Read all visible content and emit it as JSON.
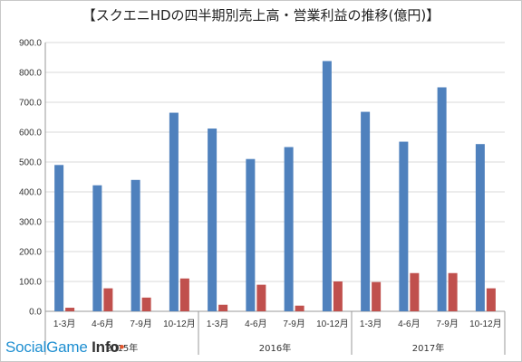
{
  "chart_data": {
    "type": "bar",
    "title": "【スクエニHDの四半期別売上高・営業利益の推移(億円)】",
    "categories": [
      "1-3月",
      "4-6月",
      "7-9月",
      "10-12月",
      "1-3月",
      "4-6月",
      "7-9月",
      "10-12月",
      "1-3月",
      "4-6月",
      "7-9月",
      "10-12月"
    ],
    "groups": [
      {
        "label": "2015年",
        "start": 0,
        "end": 3
      },
      {
        "label": "2016年",
        "start": 4,
        "end": 7
      },
      {
        "label": "2017年",
        "start": 8,
        "end": 11
      }
    ],
    "series": [
      {
        "color": "#4f81bd",
        "values": [
          490,
          422,
          440,
          665,
          612,
          510,
          550,
          838,
          668,
          568,
          750,
          560
        ]
      },
      {
        "color": "#c0504d",
        "values": [
          12,
          77,
          46,
          110,
          22,
          89,
          19,
          100,
          98,
          128,
          128,
          77
        ]
      }
    ],
    "ylim": [
      0,
      900
    ],
    "yticks": [
      "0.0",
      "100.0",
      "200.0",
      "300.0",
      "400.0",
      "500.0",
      "600.0",
      "700.0",
      "800.0",
      "900.0"
    ],
    "grid": true
  },
  "watermark": {
    "text": "SocialGame Info"
  }
}
